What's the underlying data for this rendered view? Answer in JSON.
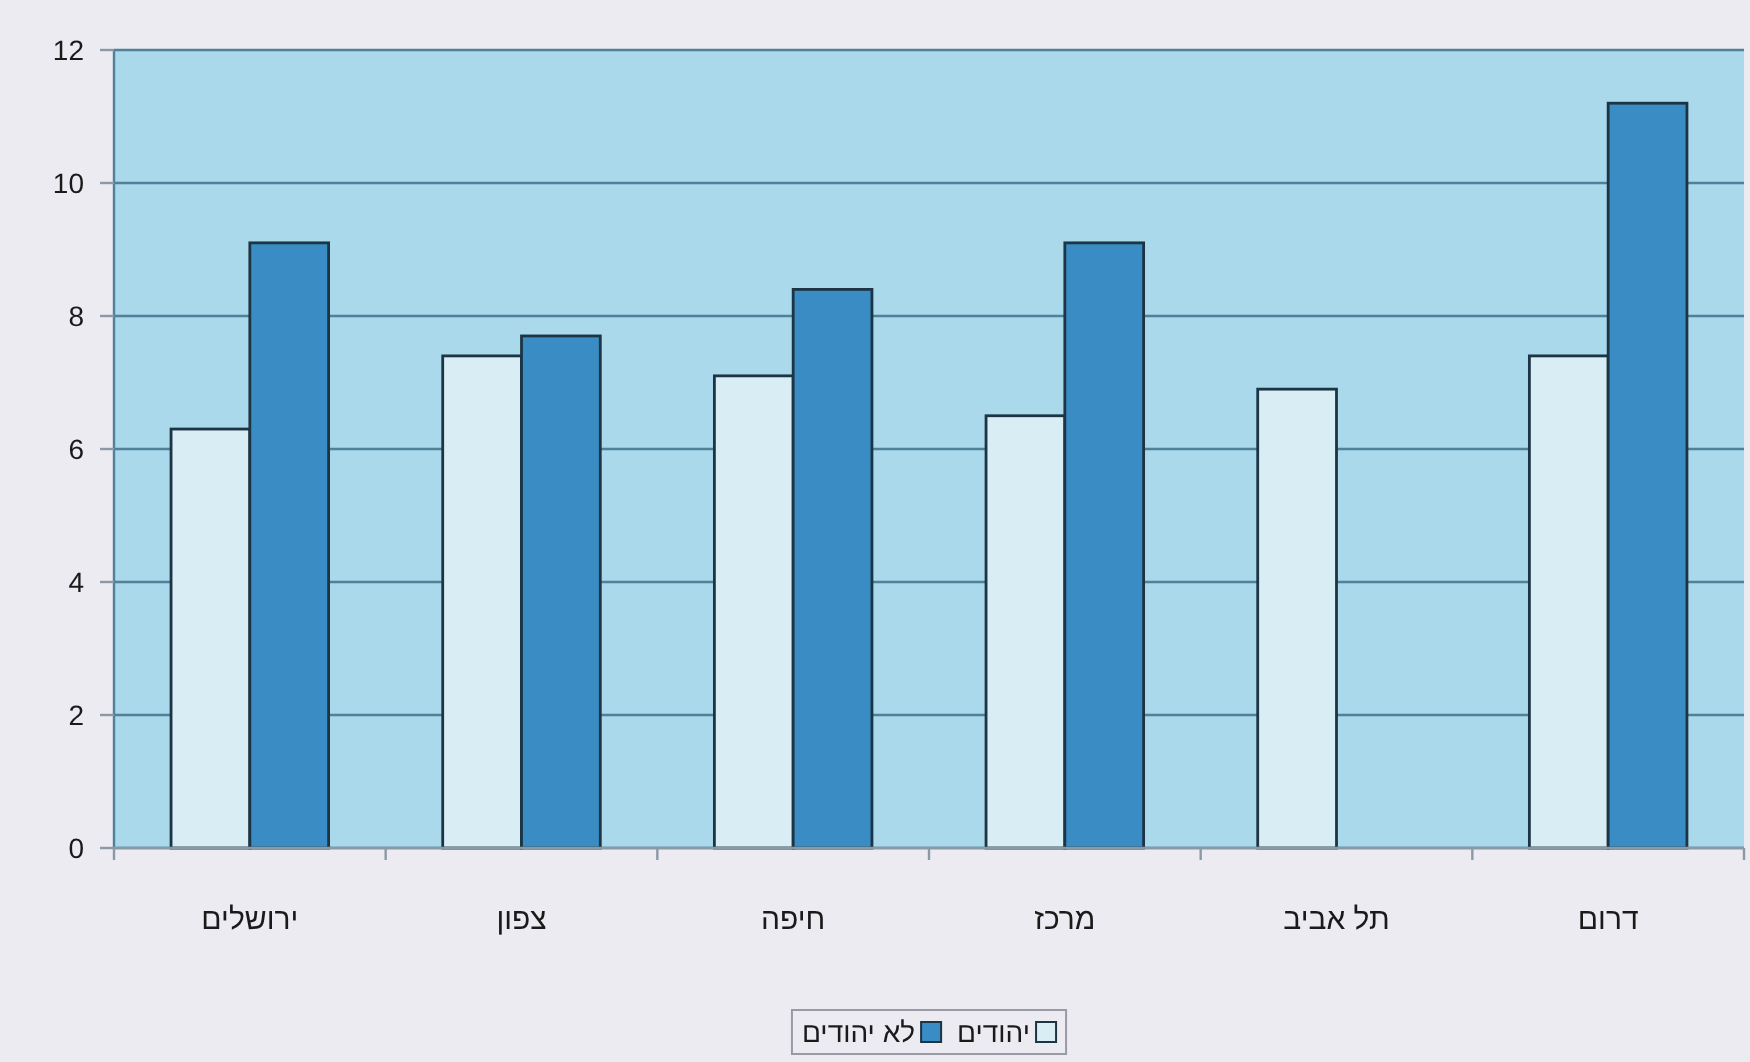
{
  "chart_data": {
    "type": "bar",
    "categories": [
      "ירושלים",
      "צפון",
      "חיפה",
      "מרכז",
      "תל אביב",
      "דרום"
    ],
    "series": [
      {
        "name": "יהודים",
        "color": "#d9edf5",
        "values": [
          6.3,
          7.4,
          7.1,
          6.5,
          6.9,
          7.4
        ]
      },
      {
        "name": "לא יהודים",
        "color": "#3a8cc4",
        "values": [
          9.1,
          7.7,
          8.4,
          9.1,
          null,
          11.2
        ]
      }
    ],
    "ylim": [
      0,
      12
    ],
    "yticks": [
      0,
      2,
      4,
      6,
      8,
      10,
      12
    ],
    "grid": "y",
    "legend": "bottom"
  }
}
